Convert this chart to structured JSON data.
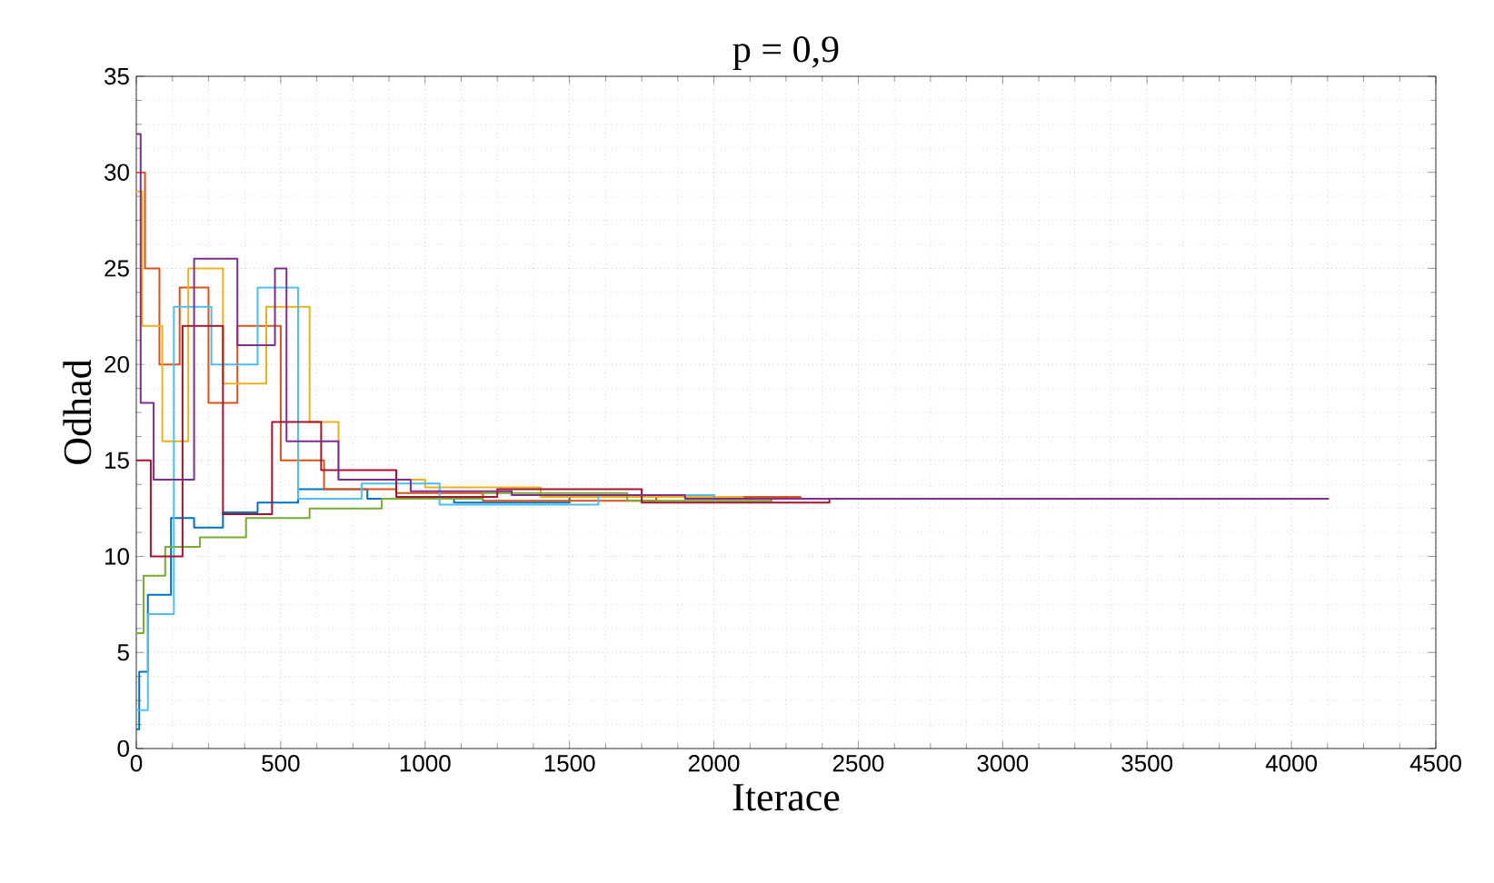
{
  "chart_data": {
    "type": "step",
    "title": "p = 0,9",
    "xlabel": "Iterace",
    "ylabel": "Odhad",
    "xlim": [
      0,
      4500
    ],
    "ylim": [
      0,
      35
    ],
    "xticks": [
      0,
      500,
      1000,
      1500,
      2000,
      2500,
      3000,
      3500,
      4000,
      4500
    ],
    "yticks": [
      0,
      5,
      10,
      15,
      20,
      25,
      30,
      35
    ],
    "grid": true,
    "line_style": "solid",
    "series": [
      {
        "color": "#0072bd",
        "x": [
          0,
          10,
          40,
          120,
          200,
          300,
          420,
          560,
          800,
          1100,
          1500,
          2000,
          2550
        ],
        "values": [
          1,
          4,
          8,
          12,
          11.5,
          12.3,
          12.8,
          13.5,
          13,
          12.8,
          13.2,
          13,
          13
        ]
      },
      {
        "color": "#d95319",
        "x": [
          0,
          30,
          80,
          150,
          250,
          350,
          500,
          650,
          900,
          1200,
          1800,
          2300
        ],
        "values": [
          30,
          25,
          20,
          24,
          18,
          22,
          15,
          13.5,
          13.3,
          12.9,
          13.1,
          13
        ]
      },
      {
        "color": "#edb120",
        "x": [
          0,
          20,
          90,
          180,
          300,
          450,
          600,
          700,
          1000,
          1400,
          2100
        ],
        "values": [
          29,
          22,
          16,
          25,
          19,
          23,
          17,
          14,
          13.6,
          13.1,
          13
        ]
      },
      {
        "color": "#77ac30",
        "x": [
          0,
          25,
          100,
          220,
          380,
          600,
          850,
          1200,
          1700,
          2200
        ],
        "values": [
          6,
          9,
          10.5,
          11,
          12,
          12.5,
          13,
          13.3,
          12.9,
          13
        ]
      },
      {
        "color": "#4dbeee",
        "x": [
          0,
          40,
          130,
          260,
          420,
          560,
          780,
          1050,
          1600,
          2000
        ],
        "values": [
          2,
          7,
          23,
          20,
          24,
          13,
          13.8,
          12.7,
          13.2,
          13
        ]
      },
      {
        "color": "#a2142f",
        "x": [
          0,
          50,
          160,
          300,
          470,
          640,
          900,
          1250,
          1750,
          2400
        ],
        "values": [
          15,
          10,
          22,
          12.2,
          17,
          14.5,
          13.1,
          13.5,
          12.8,
          13
        ]
      },
      {
        "color": "#7e2f8e",
        "x": [
          0,
          15,
          60,
          200,
          350,
          480,
          520,
          700,
          950,
          1300,
          1900,
          2500,
          4130
        ],
        "values": [
          32,
          18,
          14,
          25.5,
          21,
          25,
          16,
          14,
          13.4,
          13.2,
          13,
          13,
          13
        ]
      }
    ]
  }
}
